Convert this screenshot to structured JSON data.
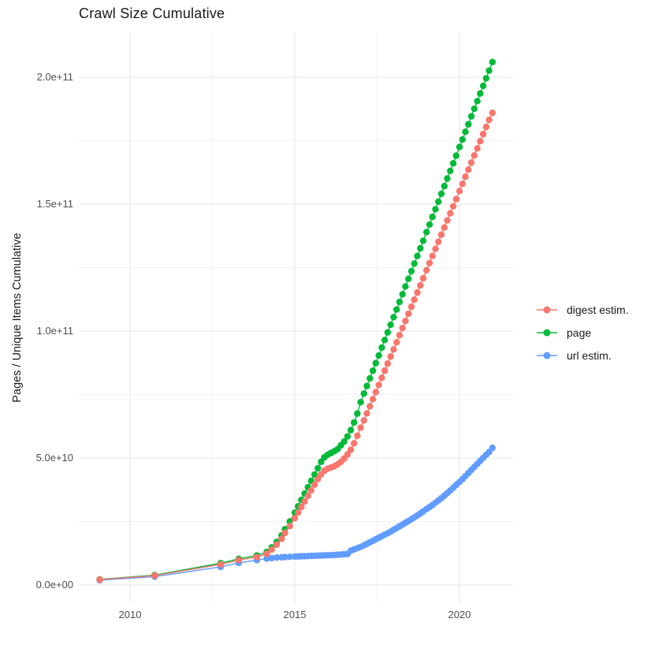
{
  "chart_data": {
    "type": "line",
    "title": "Crawl Size Cumulative",
    "xlabel": "",
    "ylabel": "Pages / Unique Items Cumulative",
    "grid": true,
    "legend_position": "right",
    "unit": "values in billions of items (1e9)",
    "xlim": [
      2008.45,
      2021.6
    ],
    "ylim_e9": [
      -7,
      217
    ],
    "x_ticks": {
      "major_values": [
        2010,
        2015,
        2020
      ],
      "major_labels": [
        "2010",
        "2015",
        "2020"
      ],
      "minor_values": [
        2012.5,
        2017.5
      ]
    },
    "y_ticks": {
      "major_values_e9": [
        0,
        50,
        100,
        150,
        200
      ],
      "major_labels": [
        "0.0e+00",
        "5.0e+10",
        "1.0e+11",
        "1.5e+11",
        "2.0e+11"
      ],
      "minor_values_e9": [
        25,
        75,
        125,
        175
      ]
    },
    "x": [
      2009.08,
      2010.75,
      2012.75,
      2013.3,
      2013.85,
      2014.15,
      2014.3,
      2014.45,
      2014.6,
      2014.7,
      2014.85,
      2015.0,
      2015.1,
      2015.2,
      2015.3,
      2015.4,
      2015.5,
      2015.6,
      2015.7,
      2015.8,
      2015.9,
      2016.0,
      2016.1,
      2016.2,
      2016.3,
      2016.4,
      2016.5,
      2016.6,
      2016.7,
      2016.8,
      2016.9,
      2017.0,
      2017.1,
      2017.19,
      2017.28,
      2017.37,
      2017.46,
      2017.55,
      2017.64,
      2017.73,
      2017.82,
      2017.91,
      2018.0,
      2018.09,
      2018.18,
      2018.27,
      2018.36,
      2018.45,
      2018.54,
      2018.63,
      2018.72,
      2018.81,
      2018.9,
      2019.0,
      2019.09,
      2019.18,
      2019.27,
      2019.36,
      2019.45,
      2019.54,
      2019.63,
      2019.72,
      2019.81,
      2019.9,
      2020.0,
      2020.09,
      2020.18,
      2020.27,
      2020.36,
      2020.45,
      2020.54,
      2020.63,
      2020.72,
      2020.81,
      2020.9,
      2021.0
    ],
    "series": [
      {
        "name": "digest estim.",
        "color": "#F8766D",
        "values_e9": [
          2.1,
          3.7,
          8.1,
          9.8,
          11.0,
          12.3,
          13.9,
          15.9,
          18.2,
          20.5,
          23.2,
          26.3,
          28.5,
          30.7,
          32.9,
          35.1,
          37.3,
          39.5,
          41.7,
          43.6,
          45.0,
          45.8,
          46.3,
          46.8,
          47.5,
          48.5,
          49.8,
          51.4,
          53.3,
          55.8,
          58.8,
          62.0,
          64.8,
          67.6,
          70.4,
          73.2,
          76.0,
          78.8,
          81.6,
          84.4,
          87.2,
          90.0,
          92.8,
          95.6,
          98.4,
          101.2,
          104.0,
          106.8,
          109.6,
          112.4,
          115.2,
          118.0,
          120.8,
          124.0,
          126.8,
          129.6,
          132.4,
          135.2,
          138.0,
          140.8,
          143.6,
          146.4,
          149.2,
          152.0,
          155.2,
          158.0,
          160.8,
          163.6,
          166.4,
          169.2,
          172.0,
          174.8,
          177.6,
          180.4,
          183.2,
          186.0
        ]
      },
      {
        "name": "page",
        "color": "#00BA38",
        "values_e9": [
          2.2,
          3.9,
          8.6,
          10.3,
          11.6,
          13.0,
          14.8,
          17.0,
          19.5,
          22.0,
          25.0,
          28.5,
          31.0,
          33.5,
          36.0,
          38.5,
          41.0,
          43.5,
          46.0,
          48.5,
          50.3,
          51.3,
          52.0,
          52.7,
          53.5,
          55.0,
          56.5,
          58.5,
          61.0,
          64.0,
          67.5,
          72.0,
          75.4,
          78.4,
          81.4,
          84.4,
          87.4,
          90.4,
          93.5,
          96.5,
          99.5,
          102.5,
          105.5,
          108.5,
          111.5,
          114.5,
          117.6,
          120.6,
          123.6,
          126.6,
          129.6,
          132.6,
          135.6,
          139.0,
          142.0,
          145.0,
          148.0,
          151.0,
          154.1,
          157.1,
          160.1,
          163.1,
          166.1,
          169.1,
          172.5,
          175.5,
          178.5,
          181.5,
          184.6,
          187.6,
          190.6,
          193.6,
          196.6,
          199.6,
          202.6,
          206.0
        ]
      },
      {
        "name": "url estim.",
        "color": "#619CFF",
        "values_e9": [
          1.9,
          3.3,
          7.1,
          8.7,
          9.8,
          10.4,
          10.6,
          10.8,
          10.9,
          11.0,
          11.1,
          11.2,
          11.25,
          11.3,
          11.35,
          11.4,
          11.45,
          11.5,
          11.55,
          11.6,
          11.65,
          11.7,
          11.75,
          11.8,
          11.9,
          12.0,
          12.1,
          12.2,
          13.5,
          14.0,
          14.5,
          15.0,
          15.6,
          16.2,
          16.8,
          17.4,
          18.0,
          18.6,
          19.2,
          19.8,
          20.4,
          21.0,
          21.7,
          22.4,
          23.1,
          23.8,
          24.5,
          25.2,
          25.9,
          26.6,
          27.4,
          28.2,
          29.0,
          29.9,
          30.7,
          31.5,
          32.4,
          33.3,
          34.2,
          35.2,
          36.2,
          37.2,
          38.3,
          39.4,
          40.6,
          41.7,
          42.9,
          44.1,
          45.3,
          46.5,
          47.7,
          48.9,
          50.1,
          51.3,
          52.4,
          54.0
        ]
      }
    ],
    "style": {
      "grid_major_color": "#e6e6e6",
      "grid_minor_color": "#f2f2f2",
      "background": "#ffffff",
      "tick_label_color": "#4d4d4d",
      "point_radius_px": 4.2
    }
  }
}
